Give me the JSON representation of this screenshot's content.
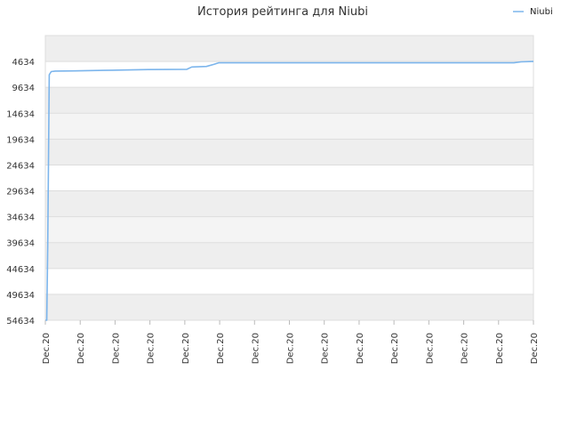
{
  "chart_data": {
    "type": "line",
    "title": "История рейтинга для Niubi",
    "xlabel": "",
    "ylabel": "",
    "legend": {
      "position": "top-right"
    },
    "grid": true,
    "y_inverted": true,
    "ylim": [
      54634,
      -366
    ],
    "y_ticks": [
      4634,
      9634,
      14634,
      19634,
      24634,
      29634,
      34634,
      39634,
      44634,
      49634,
      54634
    ],
    "x_tick_labels": [
      "Dec.20",
      "Dec.20",
      "Dec.20",
      "Dec.20",
      "Dec.20",
      "Dec.20",
      "Dec.20",
      "Dec.20",
      "Dec.20",
      "Dec.20",
      "Dec.20",
      "Dec.20",
      "Dec.20",
      "Dec.20",
      "Dec.20"
    ],
    "xlim": [
      0,
      1
    ],
    "series": [
      {
        "name": "Niubi",
        "color": "#7cb5ec",
        "points": [
          [
            0.0,
            54634
          ],
          [
            0.003,
            54634
          ],
          [
            0.005,
            40000
          ],
          [
            0.008,
            7200
          ],
          [
            0.012,
            6600
          ],
          [
            0.02,
            6500
          ],
          [
            0.06,
            6450
          ],
          [
            0.12,
            6350
          ],
          [
            0.21,
            6200
          ],
          [
            0.29,
            6150
          ],
          [
            0.3,
            5700
          ],
          [
            0.33,
            5600
          ],
          [
            0.345,
            5200
          ],
          [
            0.355,
            4900
          ],
          [
            0.42,
            4900
          ],
          [
            0.52,
            4900
          ],
          [
            0.64,
            4900
          ],
          [
            0.75,
            4900
          ],
          [
            0.86,
            4900
          ],
          [
            0.96,
            4900
          ],
          [
            0.975,
            4700
          ],
          [
            1.0,
            4634
          ]
        ]
      }
    ]
  }
}
